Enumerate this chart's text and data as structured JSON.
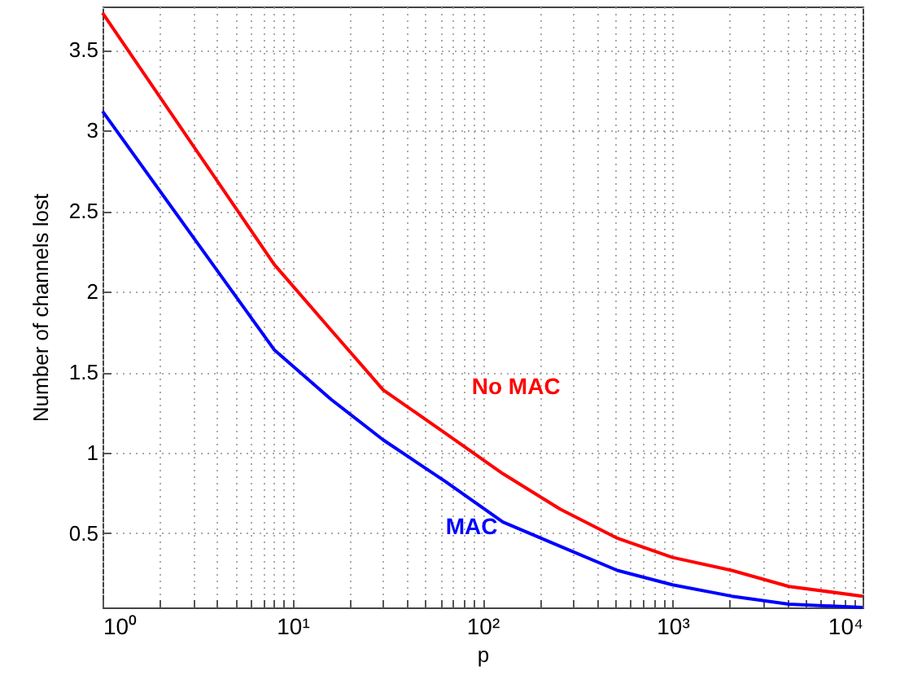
{
  "chart_data": {
    "type": "line",
    "xlabel": "p",
    "ylabel": "Number of channels lost",
    "log": "x",
    "grid": true,
    "marker": "none",
    "line_style": "solid",
    "x": [
      1,
      8,
      16,
      30,
      64,
      128,
      256,
      512,
      1000,
      2048,
      4096,
      10000
    ],
    "xlim": [
      1,
      10000
    ],
    "ylim": [
      0.04,
      3.77
    ],
    "xticks": [
      {
        "value": 1,
        "label": "10⁰"
      },
      {
        "value": 2,
        "label": null
      },
      {
        "value": 3,
        "label": null
      },
      {
        "value": 4,
        "label": null
      },
      {
        "value": 5,
        "label": null
      },
      {
        "value": 6,
        "label": null
      },
      {
        "value": 7,
        "label": null
      },
      {
        "value": 8,
        "label": null
      },
      {
        "value": 9,
        "label": null
      },
      {
        "value": 10,
        "label": "10¹"
      },
      {
        "value": 20,
        "label": null
      },
      {
        "value": 30,
        "label": null
      },
      {
        "value": 40,
        "label": null
      },
      {
        "value": 50,
        "label": null
      },
      {
        "value": 60,
        "label": null
      },
      {
        "value": 70,
        "label": null
      },
      {
        "value": 80,
        "label": null
      },
      {
        "value": 90,
        "label": null
      },
      {
        "value": 100,
        "label": "10²"
      },
      {
        "value": 200,
        "label": null
      },
      {
        "value": 300,
        "label": null
      },
      {
        "value": 400,
        "label": null
      },
      {
        "value": 500,
        "label": null
      },
      {
        "value": 600,
        "label": null
      },
      {
        "value": 700,
        "label": null
      },
      {
        "value": 800,
        "label": null
      },
      {
        "value": 900,
        "label": null
      },
      {
        "value": 1000,
        "label": "10³"
      },
      {
        "value": 2000,
        "label": null
      },
      {
        "value": 3000,
        "label": null
      },
      {
        "value": 4000,
        "label": null
      },
      {
        "value": 5000,
        "label": null
      },
      {
        "value": 6000,
        "label": null
      },
      {
        "value": 7000,
        "label": null
      },
      {
        "value": 8000,
        "label": null
      },
      {
        "value": 9000,
        "label": null
      },
      {
        "value": 10000,
        "label": "10⁴"
      }
    ],
    "yticks": [
      0.5,
      1,
      1.5,
      2,
      2.5,
      3,
      3.5
    ],
    "series": [
      {
        "name": "No MAC",
        "color": "#ff0000",
        "values": [
          3.73,
          2.17,
          1.76,
          1.39,
          1.12,
          0.87,
          0.65,
          0.47,
          0.35,
          0.27,
          0.17,
          0.11
        ]
      },
      {
        "name": "MAC",
        "color": "#0000ff",
        "values": [
          3.12,
          1.64,
          1.33,
          1.08,
          0.82,
          0.57,
          0.42,
          0.27,
          0.18,
          0.11,
          0.06,
          0.04
        ]
      }
    ]
  }
}
